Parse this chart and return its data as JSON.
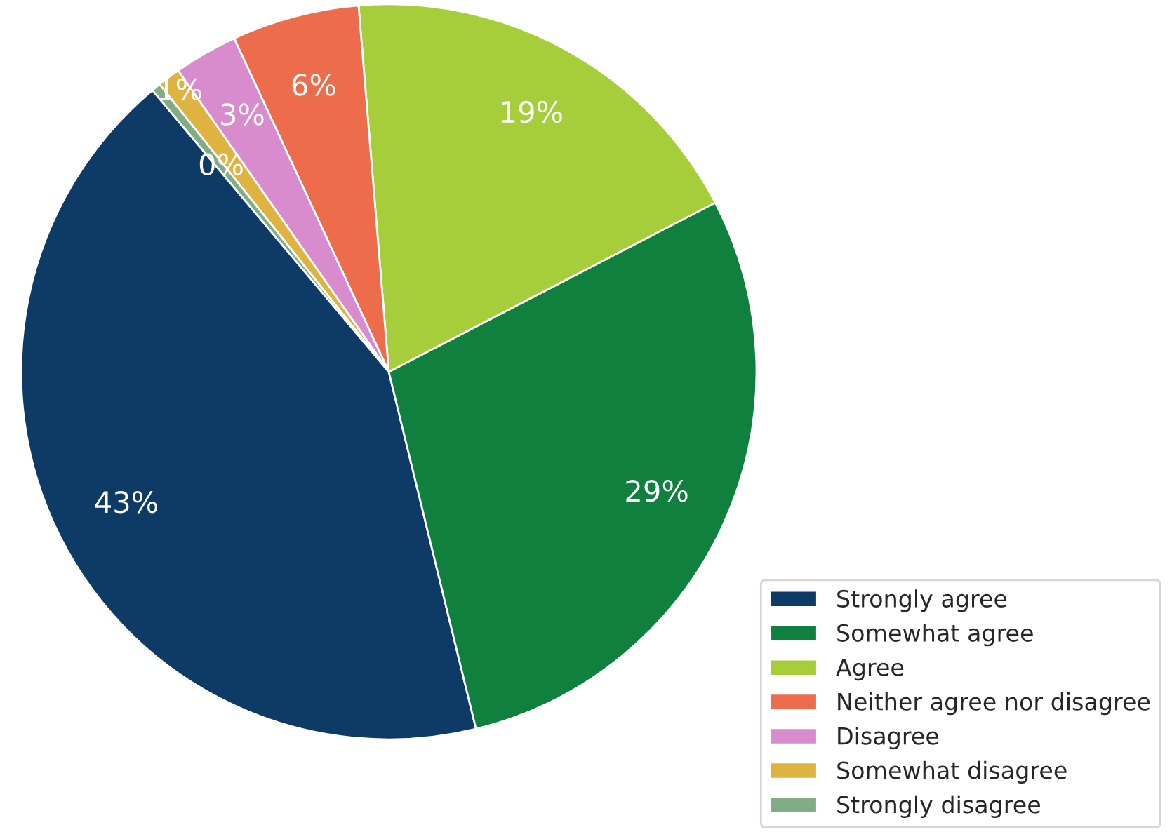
{
  "chart_data": {
    "type": "pie",
    "categories": [
      "Strongly agree",
      "Somewhat agree",
      "Agree",
      "Neither agree nor disagree",
      "Disagree",
      "Somewhat disagree",
      "Strongly disagree"
    ],
    "values": [
      42.7,
      28.8,
      18.7,
      5.6,
      2.8,
      1.0,
      0.4
    ],
    "colors": [
      "#0e3b66",
      "#10803f",
      "#a6cd3a",
      "#ec6c4b",
      "#d98ccd",
      "#deb33f",
      "#80ad83"
    ],
    "value_labels": [
      "43%",
      "29%",
      "19%",
      "6%",
      "3%",
      "1%",
      "0%"
    ],
    "legend": "bottom right"
  }
}
